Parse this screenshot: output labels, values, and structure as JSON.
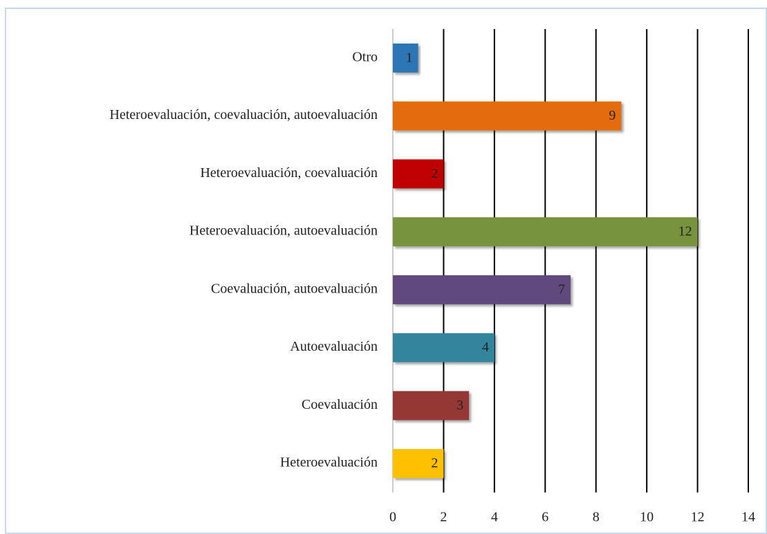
{
  "chart_data": {
    "type": "barh",
    "categories": [
      "Otro",
      "Heteroevaluación, coevaluación, autoevaluación",
      "Heteroevaluación, coevaluación",
      "Heteroevaluación, autoevaluación",
      "Coevaluación, autoevaluación",
      "Autoevaluación",
      "Coevaluación",
      "Heteroevaluación"
    ],
    "values": [
      1,
      9,
      2,
      12,
      7,
      4,
      3,
      2
    ],
    "colors": [
      "#2e75b6",
      "#e36c0a",
      "#c00000",
      "#77933c",
      "#604a7b",
      "#31859c",
      "#953735",
      "#ffc000"
    ],
    "xlim": [
      0,
      14
    ],
    "xticks": [
      0,
      2,
      4,
      6,
      8,
      10,
      12,
      14
    ],
    "grid": true
  }
}
